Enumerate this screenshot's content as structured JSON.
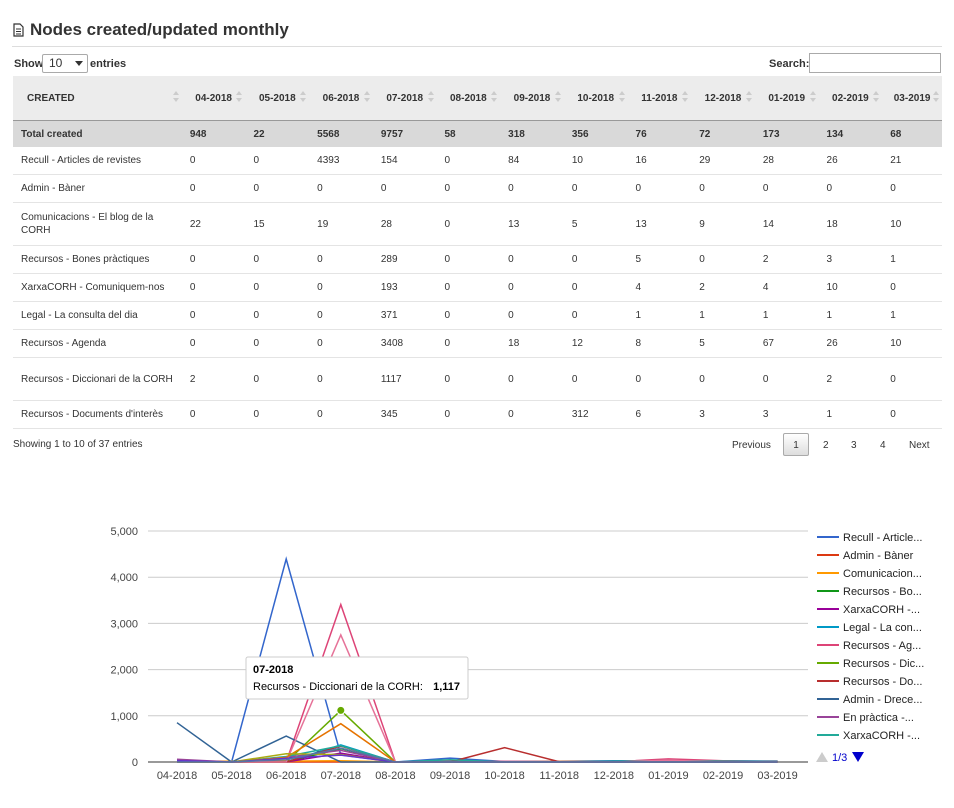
{
  "page": {
    "title": "Nodes created/updated monthly",
    "show_label": "Show",
    "page_length": "10",
    "entries_label": "entries",
    "search_label": "Search:",
    "search_value": ""
  },
  "table": {
    "first_header": "CREATED",
    "months": [
      "04-2018",
      "05-2018",
      "06-2018",
      "07-2018",
      "08-2018",
      "09-2018",
      "10-2018",
      "11-2018",
      "12-2018",
      "01-2019",
      "02-2019",
      "03-2019"
    ],
    "total": {
      "label": "Total created",
      "values": [
        "948",
        "22",
        "5568",
        "9757",
        "58",
        "318",
        "356",
        "76",
        "72",
        "173",
        "134",
        "68"
      ]
    },
    "rows": [
      {
        "label": "Recull - Articles de revistes",
        "values": [
          "0",
          "0",
          "4393",
          "154",
          "0",
          "84",
          "10",
          "16",
          "29",
          "28",
          "26",
          "21"
        ]
      },
      {
        "label": "Admin - Bàner",
        "values": [
          "0",
          "0",
          "0",
          "0",
          "0",
          "0",
          "0",
          "0",
          "0",
          "0",
          "0",
          "0"
        ]
      },
      {
        "label": "Comunicacions - El blog de la CORH",
        "values": [
          "22",
          "15",
          "19",
          "28",
          "0",
          "13",
          "5",
          "13",
          "9",
          "14",
          "18",
          "10"
        ]
      },
      {
        "label": "Recursos - Bones pràctiques",
        "values": [
          "0",
          "0",
          "0",
          "289",
          "0",
          "0",
          "0",
          "5",
          "0",
          "2",
          "3",
          "1"
        ]
      },
      {
        "label": "XarxaCORH - Comuniquem-nos",
        "values": [
          "0",
          "0",
          "0",
          "193",
          "0",
          "0",
          "0",
          "4",
          "2",
          "4",
          "10",
          "0"
        ]
      },
      {
        "label": "Legal - La consulta del dia",
        "values": [
          "0",
          "0",
          "0",
          "371",
          "0",
          "0",
          "0",
          "1",
          "1",
          "1",
          "1",
          "1"
        ]
      },
      {
        "label": "Recursos - Agenda",
        "values": [
          "0",
          "0",
          "0",
          "3408",
          "0",
          "18",
          "12",
          "8",
          "5",
          "67",
          "26",
          "10"
        ]
      },
      {
        "label": "Recursos - Diccionari de la CORH",
        "values": [
          "2",
          "0",
          "0",
          "1117",
          "0",
          "0",
          "0",
          "0",
          "0",
          "0",
          "2",
          "0"
        ]
      },
      {
        "label": "Recursos - Documents d'interès",
        "values": [
          "0",
          "0",
          "0",
          "345",
          "0",
          "0",
          "312",
          "6",
          "3",
          "3",
          "1",
          "0"
        ]
      }
    ]
  },
  "info": "Showing 1 to 10 of 37 entries",
  "pagination": {
    "previous": "Previous",
    "pages": [
      "1",
      "2",
      "3",
      "4"
    ],
    "current": "1",
    "next": "Next"
  },
  "chart_data": {
    "type": "line",
    "categories": [
      "04-2018",
      "05-2018",
      "06-2018",
      "07-2018",
      "08-2018",
      "09-2018",
      "10-2018",
      "11-2018",
      "12-2018",
      "01-2019",
      "02-2019",
      "03-2019"
    ],
    "ylim": [
      0,
      5000
    ],
    "yticks": [
      "0",
      "1,000",
      "2,000",
      "3,000",
      "4,000",
      "5,000"
    ],
    "grid": true,
    "legend_position": "right",
    "legend_page": "1/3",
    "series": [
      {
        "name": "Recull - Article...",
        "color": "#3366cc",
        "values": [
          0,
          0,
          4393,
          154,
          0,
          84,
          10,
          16,
          29,
          28,
          26,
          21
        ]
      },
      {
        "name": "Admin - Bàner",
        "color": "#dc3912",
        "values": [
          0,
          0,
          0,
          0,
          0,
          0,
          0,
          0,
          0,
          0,
          0,
          0
        ]
      },
      {
        "name": "Comunicacion...",
        "color": "#ff9900",
        "values": [
          22,
          15,
          19,
          28,
          0,
          13,
          5,
          13,
          9,
          14,
          18,
          10
        ]
      },
      {
        "name": "Recursos - Bo...",
        "color": "#109618",
        "values": [
          0,
          0,
          0,
          289,
          0,
          0,
          0,
          5,
          0,
          2,
          3,
          1
        ]
      },
      {
        "name": "XarxaCORH -...",
        "color": "#990099",
        "values": [
          0,
          0,
          0,
          193,
          0,
          0,
          0,
          4,
          2,
          4,
          10,
          0
        ]
      },
      {
        "name": "Legal - La con...",
        "color": "#0099c6",
        "values": [
          0,
          0,
          0,
          371,
          0,
          0,
          0,
          1,
          1,
          1,
          1,
          1
        ]
      },
      {
        "name": "Recursos - Ag...",
        "color": "#dd4477",
        "values": [
          0,
          0,
          0,
          3408,
          0,
          18,
          12,
          8,
          5,
          67,
          26,
          10
        ]
      },
      {
        "name": "Recursos - Dic...",
        "color": "#66aa00",
        "values": [
          2,
          0,
          0,
          1117,
          0,
          0,
          0,
          0,
          0,
          0,
          2,
          0
        ]
      },
      {
        "name": "Recursos - Do...",
        "color": "#b82e2e",
        "values": [
          0,
          0,
          0,
          345,
          0,
          0,
          312,
          6,
          3,
          3,
          1,
          0
        ]
      },
      {
        "name": "Admin - Drece...",
        "color": "#316395",
        "values": [
          850,
          0,
          560,
          0,
          0,
          0,
          0,
          0,
          0,
          0,
          0,
          0
        ]
      },
      {
        "name": "En pràctica -...",
        "color": "#994499",
        "values": [
          60,
          0,
          100,
          250,
          0,
          0,
          0,
          0,
          0,
          0,
          0,
          0
        ]
      },
      {
        "name": "XarxaCORH -...",
        "color": "#22aa99",
        "values": [
          0,
          0,
          120,
          350,
          0,
          50,
          0,
          0,
          20,
          30,
          20,
          10
        ]
      },
      {
        "name": "",
        "color": "#e67399",
        "values": [
          0,
          0,
          0,
          2750,
          0,
          0,
          0,
          0,
          0,
          40,
          0,
          0
        ]
      },
      {
        "name": "",
        "color": "#e67300",
        "values": [
          0,
          0,
          100,
          830,
          0,
          0,
          0,
          0,
          0,
          0,
          0,
          0
        ]
      },
      {
        "name": "",
        "color": "#aaaa11",
        "values": [
          0,
          0,
          180,
          160,
          0,
          0,
          0,
          0,
          0,
          0,
          0,
          0
        ]
      },
      {
        "name": "",
        "color": "#6633cc",
        "values": [
          30,
          0,
          80,
          150,
          0,
          0,
          0,
          0,
          0,
          0,
          0,
          0
        ]
      },
      {
        "name": "",
        "color": "#5574a6",
        "values": [
          0,
          0,
          50,
          300,
          0,
          0,
          0,
          0,
          0,
          0,
          0,
          0
        ]
      }
    ],
    "tooltip": {
      "title": "07-2018",
      "label": "Recursos - Diccionari de la CORH:",
      "value": "1,117"
    }
  }
}
